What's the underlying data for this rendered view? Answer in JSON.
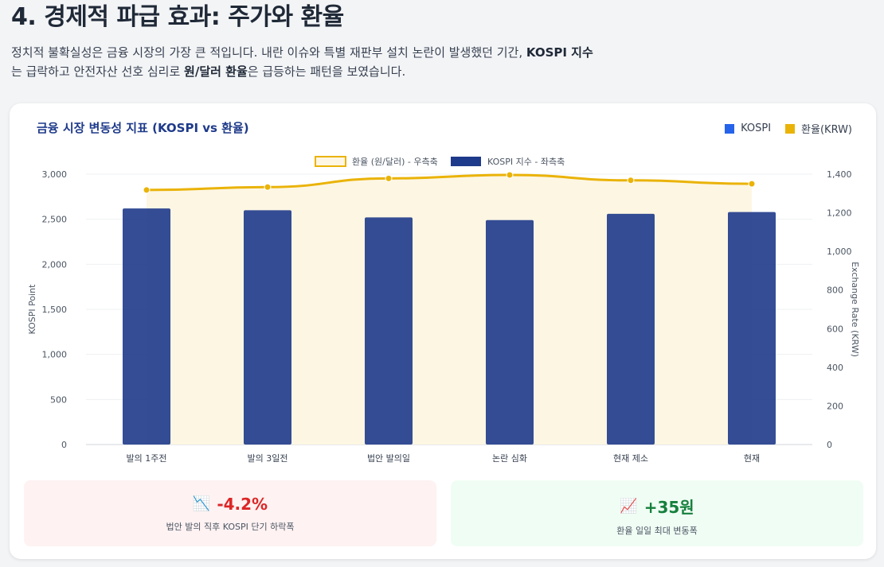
{
  "page": {
    "title": "4. 경제적 파급 효과: 주가와 환율",
    "intro_part1": "정치적 불확실성은 금융 시장의 가장 큰 적입니다. 내란 이슈와 특별 재판부 설치 논란이 발생했던 기간, ",
    "intro_bold1": "KOSPI 지수",
    "intro_part2": "는 급락하고 안전자산 선호 심리로 ",
    "intro_bold2": "원/달러 환율",
    "intro_part3": "은 급등하는 패턴을 보였습니다."
  },
  "card": {
    "title": "금융 시장 변동성 지표 (KOSPI vs 환율)",
    "legend_top": [
      {
        "label": "KOSPI",
        "color": "#2563eb"
      },
      {
        "label": "환율(KRW)",
        "color": "#eab308"
      }
    ]
  },
  "chart_data": {
    "type": "bar",
    "categories": [
      "발의 1주전",
      "발의 3일전",
      "법안 발의일",
      "논란 심화",
      "현재 제소",
      "현재"
    ],
    "series": [
      {
        "name": "KOSPI 지수 - 좌측축",
        "type": "bar",
        "axis": "left",
        "color": "#1e3a8a",
        "values": [
          2620,
          2600,
          2520,
          2490,
          2560,
          2580
        ]
      },
      {
        "name": "환율 (원/달러) - 우측축",
        "type": "line",
        "axis": "right",
        "color": "#eab308",
        "fill": "#fdf6e3",
        "values": [
          1318,
          1333,
          1378,
          1396,
          1368,
          1350
        ]
      }
    ],
    "ylabel": "KOSPI Point",
    "ylabel_right": "Exchange Rate (KRW)",
    "ylim": [
      0,
      3000
    ],
    "ylim_right": [
      0,
      1400
    ],
    "yticks": [
      "0",
      "500",
      "1,000",
      "1,500",
      "2,000",
      "2,500",
      "3,000"
    ],
    "yticks_right": [
      "0",
      "200",
      "400",
      "600",
      "800",
      "1,000",
      "1,200",
      "1,400"
    ],
    "legend_placement": "top-center",
    "grid": true
  },
  "stats": [
    {
      "icon": "chart-decreasing-icon",
      "glyph": "📉",
      "value": "-4.2%",
      "label": "법안 발의 직후 KOSPI 단기 하락폭"
    },
    {
      "icon": "chart-increasing-icon",
      "glyph": "📈",
      "value": "+35원",
      "label": "환율 일일 최대 변동폭"
    }
  ]
}
